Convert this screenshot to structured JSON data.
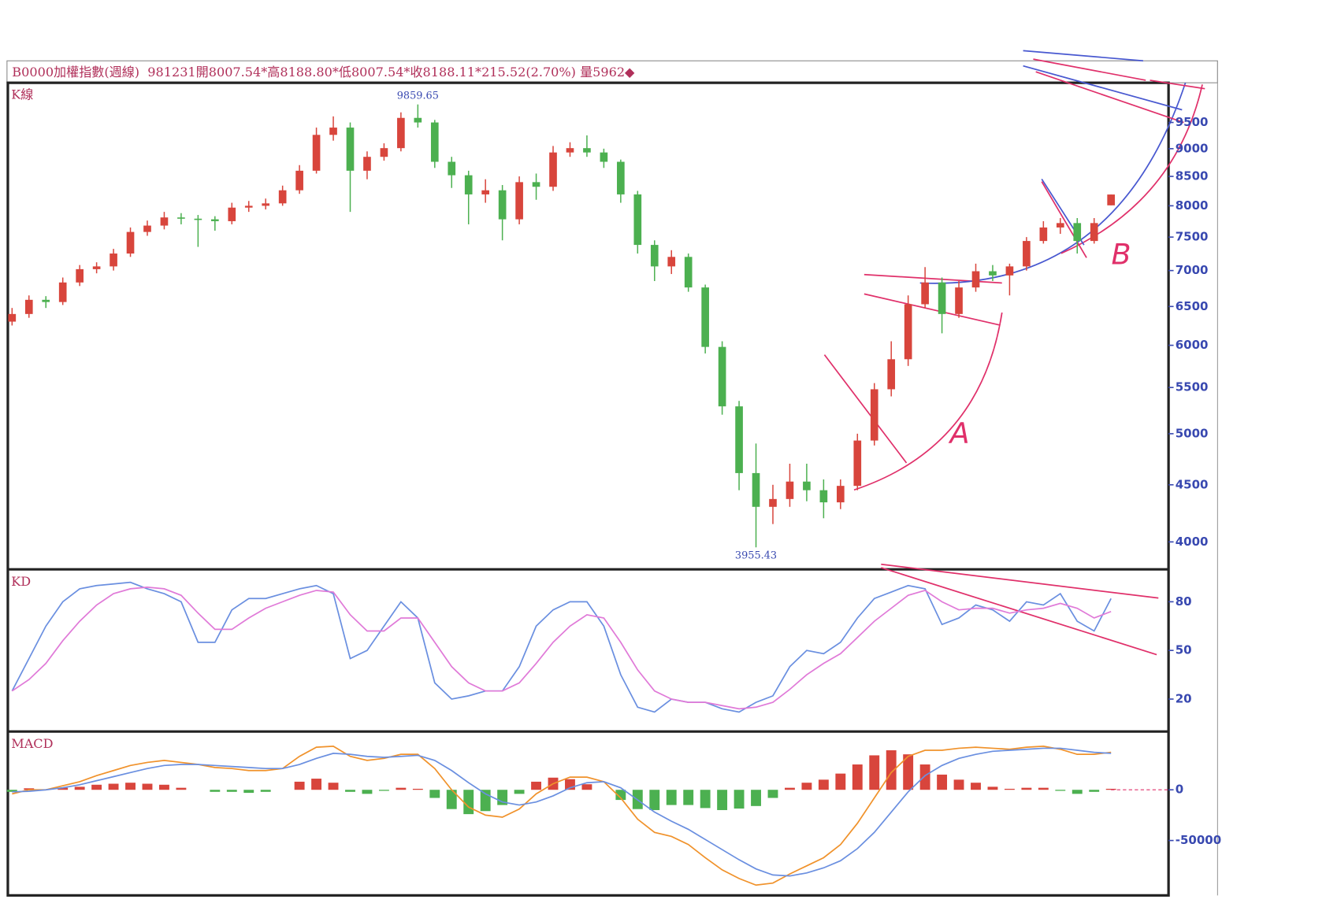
{
  "header": "B0000加權指數(週線)  981231開8007.54*高8188.80*低8007.54*收8188.11*215.52(2.70%) 量5962◆",
  "chart_data": [
    {
      "type": "candlestick",
      "title": "K線",
      "log": true,
      "up_color": "#d8453c",
      "down_color": "#4cb050",
      "ylim": [
        3780,
        10310
      ],
      "yticks": [
        4000,
        4500,
        5000,
        5500,
        6000,
        6500,
        7000,
        7500,
        8000,
        8500,
        9000,
        9500
      ],
      "high": 9859.65,
      "low": 3955.43,
      "annotations": [
        "A",
        "B"
      ],
      "candles": [
        [
          6300,
          6480,
          6250,
          6400
        ],
        [
          6400,
          6650,
          6350,
          6590
        ],
        [
          6590,
          6640,
          6480,
          6560
        ],
        [
          6560,
          6900,
          6520,
          6830
        ],
        [
          6830,
          7080,
          6780,
          7020
        ],
        [
          7020,
          7120,
          6960,
          7060
        ],
        [
          7060,
          7320,
          7000,
          7250
        ],
        [
          7250,
          7650,
          7200,
          7580
        ],
        [
          7580,
          7760,
          7520,
          7680
        ],
        [
          7680,
          7900,
          7620,
          7810
        ],
        [
          7810,
          7880,
          7700,
          7790
        ],
        [
          7790,
          7850,
          7350,
          7780
        ],
        [
          7780,
          7830,
          7600,
          7750
        ],
        [
          7750,
          8050,
          7700,
          7970
        ],
        [
          7970,
          8080,
          7900,
          8000
        ],
        [
          8000,
          8120,
          7940,
          8040
        ],
        [
          8040,
          8340,
          8000,
          8260
        ],
        [
          8260,
          8700,
          8200,
          8600
        ],
        [
          8600,
          9400,
          8550,
          9260
        ],
        [
          9260,
          9620,
          9150,
          9400
        ],
        [
          9400,
          9500,
          7900,
          8600
        ],
        [
          8600,
          8950,
          8450,
          8850
        ],
        [
          8850,
          9100,
          8780,
          9010
        ],
        [
          9010,
          9700,
          8950,
          9590
        ],
        [
          9590,
          9859.65,
          9400,
          9500
        ],
        [
          9500,
          9550,
          8650,
          8760
        ],
        [
          8760,
          8850,
          8300,
          8520
        ],
        [
          8520,
          8600,
          7700,
          8190
        ],
        [
          8190,
          8450,
          8050,
          8260
        ],
        [
          8260,
          8350,
          7450,
          7780
        ],
        [
          7780,
          8500,
          7700,
          8400
        ],
        [
          8400,
          8550,
          8100,
          8320
        ],
        [
          8320,
          9050,
          8250,
          8930
        ],
        [
          8930,
          9120,
          8850,
          9010
        ],
        [
          9010,
          9250,
          8850,
          8930
        ],
        [
          8930,
          9000,
          8650,
          8760
        ],
        [
          8760,
          8800,
          8050,
          8190
        ],
        [
          8190,
          8250,
          7250,
          7380
        ],
        [
          7380,
          7450,
          6850,
          7060
        ],
        [
          7060,
          7300,
          6950,
          7200
        ],
        [
          7200,
          7250,
          6700,
          6760
        ],
        [
          6760,
          6800,
          5900,
          5980
        ],
        [
          5980,
          6050,
          5200,
          5290
        ],
        [
          5290,
          5350,
          4450,
          4610
        ],
        [
          4610,
          4900,
          3955.43,
          4300
        ],
        [
          4300,
          4500,
          4150,
          4370
        ],
        [
          4370,
          4700,
          4300,
          4530
        ],
        [
          4530,
          4700,
          4350,
          4450
        ],
        [
          4450,
          4550,
          4200,
          4340
        ],
        [
          4340,
          4550,
          4280,
          4490
        ],
        [
          4490,
          5000,
          4450,
          4930
        ],
        [
          4930,
          5550,
          4880,
          5480
        ],
        [
          5480,
          6050,
          5400,
          5830
        ],
        [
          5830,
          6650,
          5750,
          6530
        ],
        [
          6530,
          7050,
          6480,
          6830
        ],
        [
          6830,
          6900,
          6150,
          6400
        ],
        [
          6400,
          6850,
          6350,
          6760
        ],
        [
          6760,
          7100,
          6700,
          6990
        ],
        [
          6990,
          7080,
          6850,
          6930
        ],
        [
          6930,
          7100,
          6650,
          7060
        ],
        [
          7060,
          7500,
          7000,
          7440
        ],
        [
          7440,
          7750,
          7400,
          7650
        ],
        [
          7650,
          7800,
          7550,
          7720
        ],
        [
          7720,
          7800,
          7250,
          7440
        ],
        [
          7440,
          7800,
          7400,
          7720
        ],
        [
          8007.54,
          8188.8,
          8007.54,
          8188.11
        ]
      ]
    },
    {
      "type": "line",
      "title": "KD",
      "ylim": [
        0,
        100
      ],
      "yticks": [
        20,
        50,
        80
      ],
      "series": [
        {
          "color": "#6a8fe0",
          "values": [
            25,
            45,
            65,
            80,
            88,
            90,
            91,
            92,
            88,
            85,
            80,
            55,
            55,
            75,
            82,
            82,
            85,
            88,
            90,
            85,
            45,
            50,
            65,
            80,
            70,
            30,
            20,
            22,
            25,
            25,
            40,
            65,
            75,
            80,
            80,
            65,
            35,
            15,
            12,
            20,
            18,
            18,
            14,
            12,
            18,
            22,
            40,
            50,
            48,
            55,
            70,
            82,
            86,
            90,
            88,
            66,
            70,
            78,
            75,
            68,
            80,
            78,
            85,
            68,
            62,
            82
          ]
        },
        {
          "color": "#e07ad8",
          "values": [
            25,
            32,
            42,
            56,
            68,
            78,
            85,
            88,
            89,
            88,
            84,
            73,
            63,
            63,
            70,
            76,
            80,
            84,
            87,
            86,
            72,
            62,
            62,
            70,
            70,
            55,
            40,
            30,
            25,
            25,
            30,
            42,
            55,
            65,
            72,
            70,
            55,
            38,
            25,
            20,
            18,
            18,
            16,
            14,
            15,
            18,
            26,
            35,
            42,
            48,
            58,
            68,
            76,
            84,
            87,
            80,
            75,
            76,
            76,
            73,
            75,
            76,
            79,
            76,
            70,
            74
          ]
        }
      ]
    },
    {
      "type": "macd",
      "title": "MACD",
      "ylim": [
        -102500,
        57500
      ],
      "yticks": [
        0,
        -50000
      ],
      "series": [
        {
          "type": "bar",
          "pos_color": "#d8453c",
          "neg_color": "#4cb050",
          "values": [
            -2000,
            1500,
            0,
            2000,
            3000,
            5000,
            6000,
            7000,
            6000,
            5000,
            2000,
            0,
            -2000,
            -2000,
            -3000,
            -2000,
            0,
            8000,
            11000,
            7000,
            -2000,
            -4000,
            -1000,
            2000,
            1000,
            -8000,
            -19000,
            -24000,
            -21000,
            -15000,
            -4000,
            8000,
            12000,
            10500,
            5500,
            0,
            -10000,
            -19000,
            -20000,
            -15000,
            -15000,
            -18000,
            -20000,
            -18500,
            -16000,
            -8000,
            2000,
            7000,
            10000,
            16000,
            25000,
            34000,
            39000,
            35000,
            25000,
            15000,
            10000,
            7000,
            3000,
            1000,
            2000,
            2000,
            -1000,
            -4000,
            -2000,
            1000
          ]
        },
        {
          "type": "line",
          "color": "#f0922b",
          "values": [
            -4000,
            0,
            0,
            4000,
            8000,
            14000,
            19000,
            24000,
            27000,
            29000,
            27000,
            25000,
            22000,
            21000,
            19000,
            19000,
            21000,
            33000,
            42000,
            43000,
            33000,
            29000,
            31000,
            35000,
            35000,
            21000,
            0,
            -17000,
            -25000,
            -27000,
            -19000,
            -4000,
            6000,
            12500,
            12500,
            8000,
            -8000,
            -29000,
            -42000,
            -46000,
            -54000,
            -67000,
            -79000,
            -87500,
            -94000,
            -92000,
            -83000,
            -75000,
            -67000,
            -54000,
            -33000,
            -8000,
            17000,
            33000,
            39000,
            39000,
            41000,
            42000,
            41000,
            40000,
            42000,
            43000,
            40000,
            35000,
            35000,
            37000
          ]
        },
        {
          "type": "line",
          "color": "#6a8fe0",
          "values": [
            -2000,
            -1500,
            0,
            2000,
            5000,
            9000,
            13000,
            17000,
            21000,
            24000,
            25000,
            25000,
            24000,
            23000,
            22000,
            21000,
            21000,
            25000,
            31000,
            36000,
            35000,
            33000,
            32000,
            33000,
            34000,
            29000,
            19000,
            7000,
            -4000,
            -12000,
            -15000,
            -12000,
            -6000,
            2000,
            7000,
            8000,
            2000,
            -10000,
            -22000,
            -31000,
            -39000,
            -49000,
            -59000,
            -69000,
            -78000,
            -84000,
            -85000,
            -82000,
            -77000,
            -70000,
            -58000,
            -42000,
            -22000,
            -2000,
            14000,
            24000,
            31000,
            35000,
            38000,
            39000,
            40000,
            41000,
            41000,
            39000,
            37000,
            36000
          ]
        }
      ]
    }
  ]
}
